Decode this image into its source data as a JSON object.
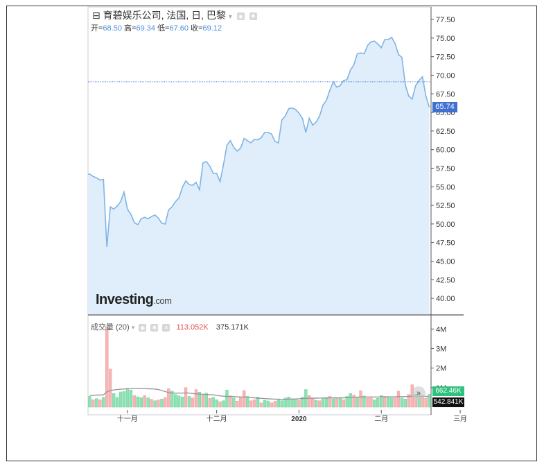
{
  "header": {
    "collapse_glyph": "⊟",
    "title": "育碧娱乐公司, 法国, 日, 巴黎",
    "dropdown_glyph": "▾",
    "eye_icon": "eye-icon",
    "gear_icon": "gear-icon"
  },
  "ohlc": {
    "open_label": "开=",
    "open": "68.50",
    "high_label": "高=",
    "high": "69.34",
    "low_label": "低=",
    "low": "67.60",
    "close_label": "收=",
    "close": "69.12"
  },
  "last_price_label": "65.74",
  "logo": {
    "main": "Investing",
    "suffix": ".com"
  },
  "volume_header": {
    "label": "成交量 (20)",
    "dropdown_glyph": "▾",
    "sell_value": "113.052K",
    "total_value": "375.171K"
  },
  "volume_tags": {
    "current": "662.46K",
    "ma": "542.841K"
  },
  "nav_glyph": "»",
  "colors": {
    "line": "#7fb3e6",
    "area": "#dfeefa",
    "price_tag": "#3f6fd1",
    "up_bar": "#8ee2b5",
    "down_bar": "#f6b6b6",
    "ma_line": "#999999",
    "ref_line": "#3f6fd1"
  },
  "chart_data": [
    {
      "type": "area",
      "title": "",
      "ylim": [
        37.5,
        78.5
      ],
      "y_ticks": [
        "77.50",
        "75.00",
        "72.50",
        "70.00",
        "67.50",
        "65.00",
        "62.50",
        "60.00",
        "57.50",
        "55.00",
        "52.50",
        "50.00",
        "47.50",
        "45.00",
        "42.50",
        "40.00"
      ],
      "x_ticks": [
        "十一月",
        "十二月",
        "2020",
        "二月",
        "三月"
      ],
      "x_tick_index": [
        11,
        37,
        61,
        85,
        108
      ],
      "reference_line": 69.12,
      "last_value": 65.74,
      "values": [
        56.7,
        56.4,
        56.2,
        55.9,
        56.0,
        46.9,
        52.3,
        52.0,
        52.4,
        53.0,
        54.3,
        52.0,
        51.3,
        50.2,
        49.9,
        50.7,
        50.9,
        50.7,
        51.0,
        51.2,
        50.8,
        50.1,
        50.0,
        51.9,
        52.3,
        53.0,
        53.5,
        54.9,
        55.8,
        55.3,
        55.2,
        55.6,
        54.6,
        58.2,
        58.4,
        57.8,
        56.8,
        56.8,
        55.7,
        58.0,
        60.6,
        61.2,
        60.3,
        59.8,
        60.2,
        61.5,
        61.2,
        60.9,
        61.4,
        61.3,
        61.6,
        62.3,
        62.3,
        62.1,
        61.1,
        60.9,
        64.0,
        64.5,
        65.5,
        65.6,
        65.4,
        64.9,
        64.2,
        62.3,
        64.2,
        63.3,
        63.7,
        64.5,
        66.0,
        66.6,
        68.0,
        69.1,
        68.4,
        68.6,
        69.3,
        69.4,
        70.7,
        71.4,
        72.9,
        73.0,
        72.9,
        74.0,
        74.5,
        74.6,
        74.2,
        73.7,
        74.8,
        74.8,
        75.1,
        74.3,
        72.8,
        72.4,
        68.7,
        67.2,
        66.8,
        68.6,
        69.3,
        69.8,
        67.2,
        65.7
      ],
      "y_unit": ""
    },
    {
      "type": "bar",
      "title": "",
      "series_label": "成交量 (20)",
      "ylim": [
        0,
        4.4
      ],
      "y_unit": "M",
      "y_ticks": [
        "4M",
        "3M",
        "2M",
        "1M"
      ],
      "volumes": [
        0.55,
        0.38,
        0.44,
        0.38,
        0.5,
        4.1,
        1.95,
        0.7,
        0.5,
        0.78,
        0.8,
        0.95,
        0.88,
        0.6,
        0.53,
        0.49,
        0.6,
        0.48,
        0.4,
        0.33,
        0.37,
        0.42,
        0.5,
        0.95,
        0.82,
        0.65,
        0.58,
        0.52,
        1.0,
        0.55,
        0.48,
        0.9,
        0.77,
        0.67,
        0.72,
        0.45,
        0.5,
        0.38,
        0.28,
        0.33,
        0.88,
        0.58,
        0.47,
        0.31,
        0.52,
        0.85,
        0.55,
        0.33,
        0.38,
        0.52,
        0.22,
        0.35,
        0.32,
        0.22,
        0.3,
        0.4,
        0.33,
        0.47,
        0.52,
        0.43,
        0.4,
        0.35,
        0.52,
        0.9,
        0.6,
        0.43,
        0.35,
        0.33,
        0.45,
        0.5,
        0.55,
        0.43,
        0.49,
        0.45,
        0.38,
        0.55,
        0.7,
        0.62,
        0.48,
        0.84,
        0.57,
        0.46,
        0.47,
        0.38,
        0.45,
        0.6,
        0.55,
        0.5,
        0.47,
        0.48,
        0.82,
        0.47,
        0.42,
        0.65,
        1.15,
        0.66,
        0.7,
        0.6,
        0.45,
        0.66
      ],
      "up_days": [
        1,
        0,
        1,
        0,
        1,
        0,
        0,
        1,
        1,
        1,
        1,
        1,
        1,
        0,
        1,
        1,
        0,
        1,
        0,
        1,
        0,
        1,
        0,
        0,
        1,
        1,
        1,
        1,
        0,
        1,
        0,
        0,
        1,
        0,
        1,
        0,
        1,
        1,
        0,
        1,
        1,
        0,
        1,
        0,
        0,
        0,
        1,
        0,
        0,
        1,
        0,
        1,
        1,
        0,
        0,
        1,
        1,
        1,
        1,
        1,
        1,
        0,
        1,
        1,
        0,
        0,
        1,
        0,
        1,
        1,
        0,
        1,
        0,
        1,
        0,
        1,
        1,
        0,
        1,
        0,
        1,
        0,
        0,
        1,
        1,
        1,
        0,
        1,
        1,
        0,
        0,
        1,
        1,
        0,
        0,
        0,
        1,
        0,
        0,
        1
      ],
      "ma": [
        0.6,
        0.6,
        0.62,
        0.62,
        0.63,
        0.78,
        0.85,
        0.88,
        0.9,
        0.92,
        0.93,
        0.95,
        0.95,
        0.96,
        0.96,
        0.95,
        0.95,
        0.94,
        0.94,
        0.93,
        0.9,
        0.85,
        0.8,
        0.75,
        0.72,
        0.72,
        0.72,
        0.72,
        0.73,
        0.72,
        0.7,
        0.68,
        0.67,
        0.66,
        0.65,
        0.64,
        0.63,
        0.6,
        0.58,
        0.56,
        0.55,
        0.55,
        0.54,
        0.53,
        0.52,
        0.52,
        0.52,
        0.5,
        0.48,
        0.46,
        0.45,
        0.44,
        0.43,
        0.42,
        0.41,
        0.41,
        0.4,
        0.4,
        0.41,
        0.42,
        0.42,
        0.43,
        0.44,
        0.45,
        0.46,
        0.46,
        0.46,
        0.47,
        0.47,
        0.47,
        0.48,
        0.48,
        0.48,
        0.48,
        0.48,
        0.49,
        0.5,
        0.51,
        0.51,
        0.52,
        0.52,
        0.52,
        0.52,
        0.52,
        0.52,
        0.53,
        0.53,
        0.53,
        0.53,
        0.53,
        0.54,
        0.54,
        0.54,
        0.55,
        0.56,
        0.56,
        0.56,
        0.56,
        0.55,
        0.54
      ]
    }
  ]
}
